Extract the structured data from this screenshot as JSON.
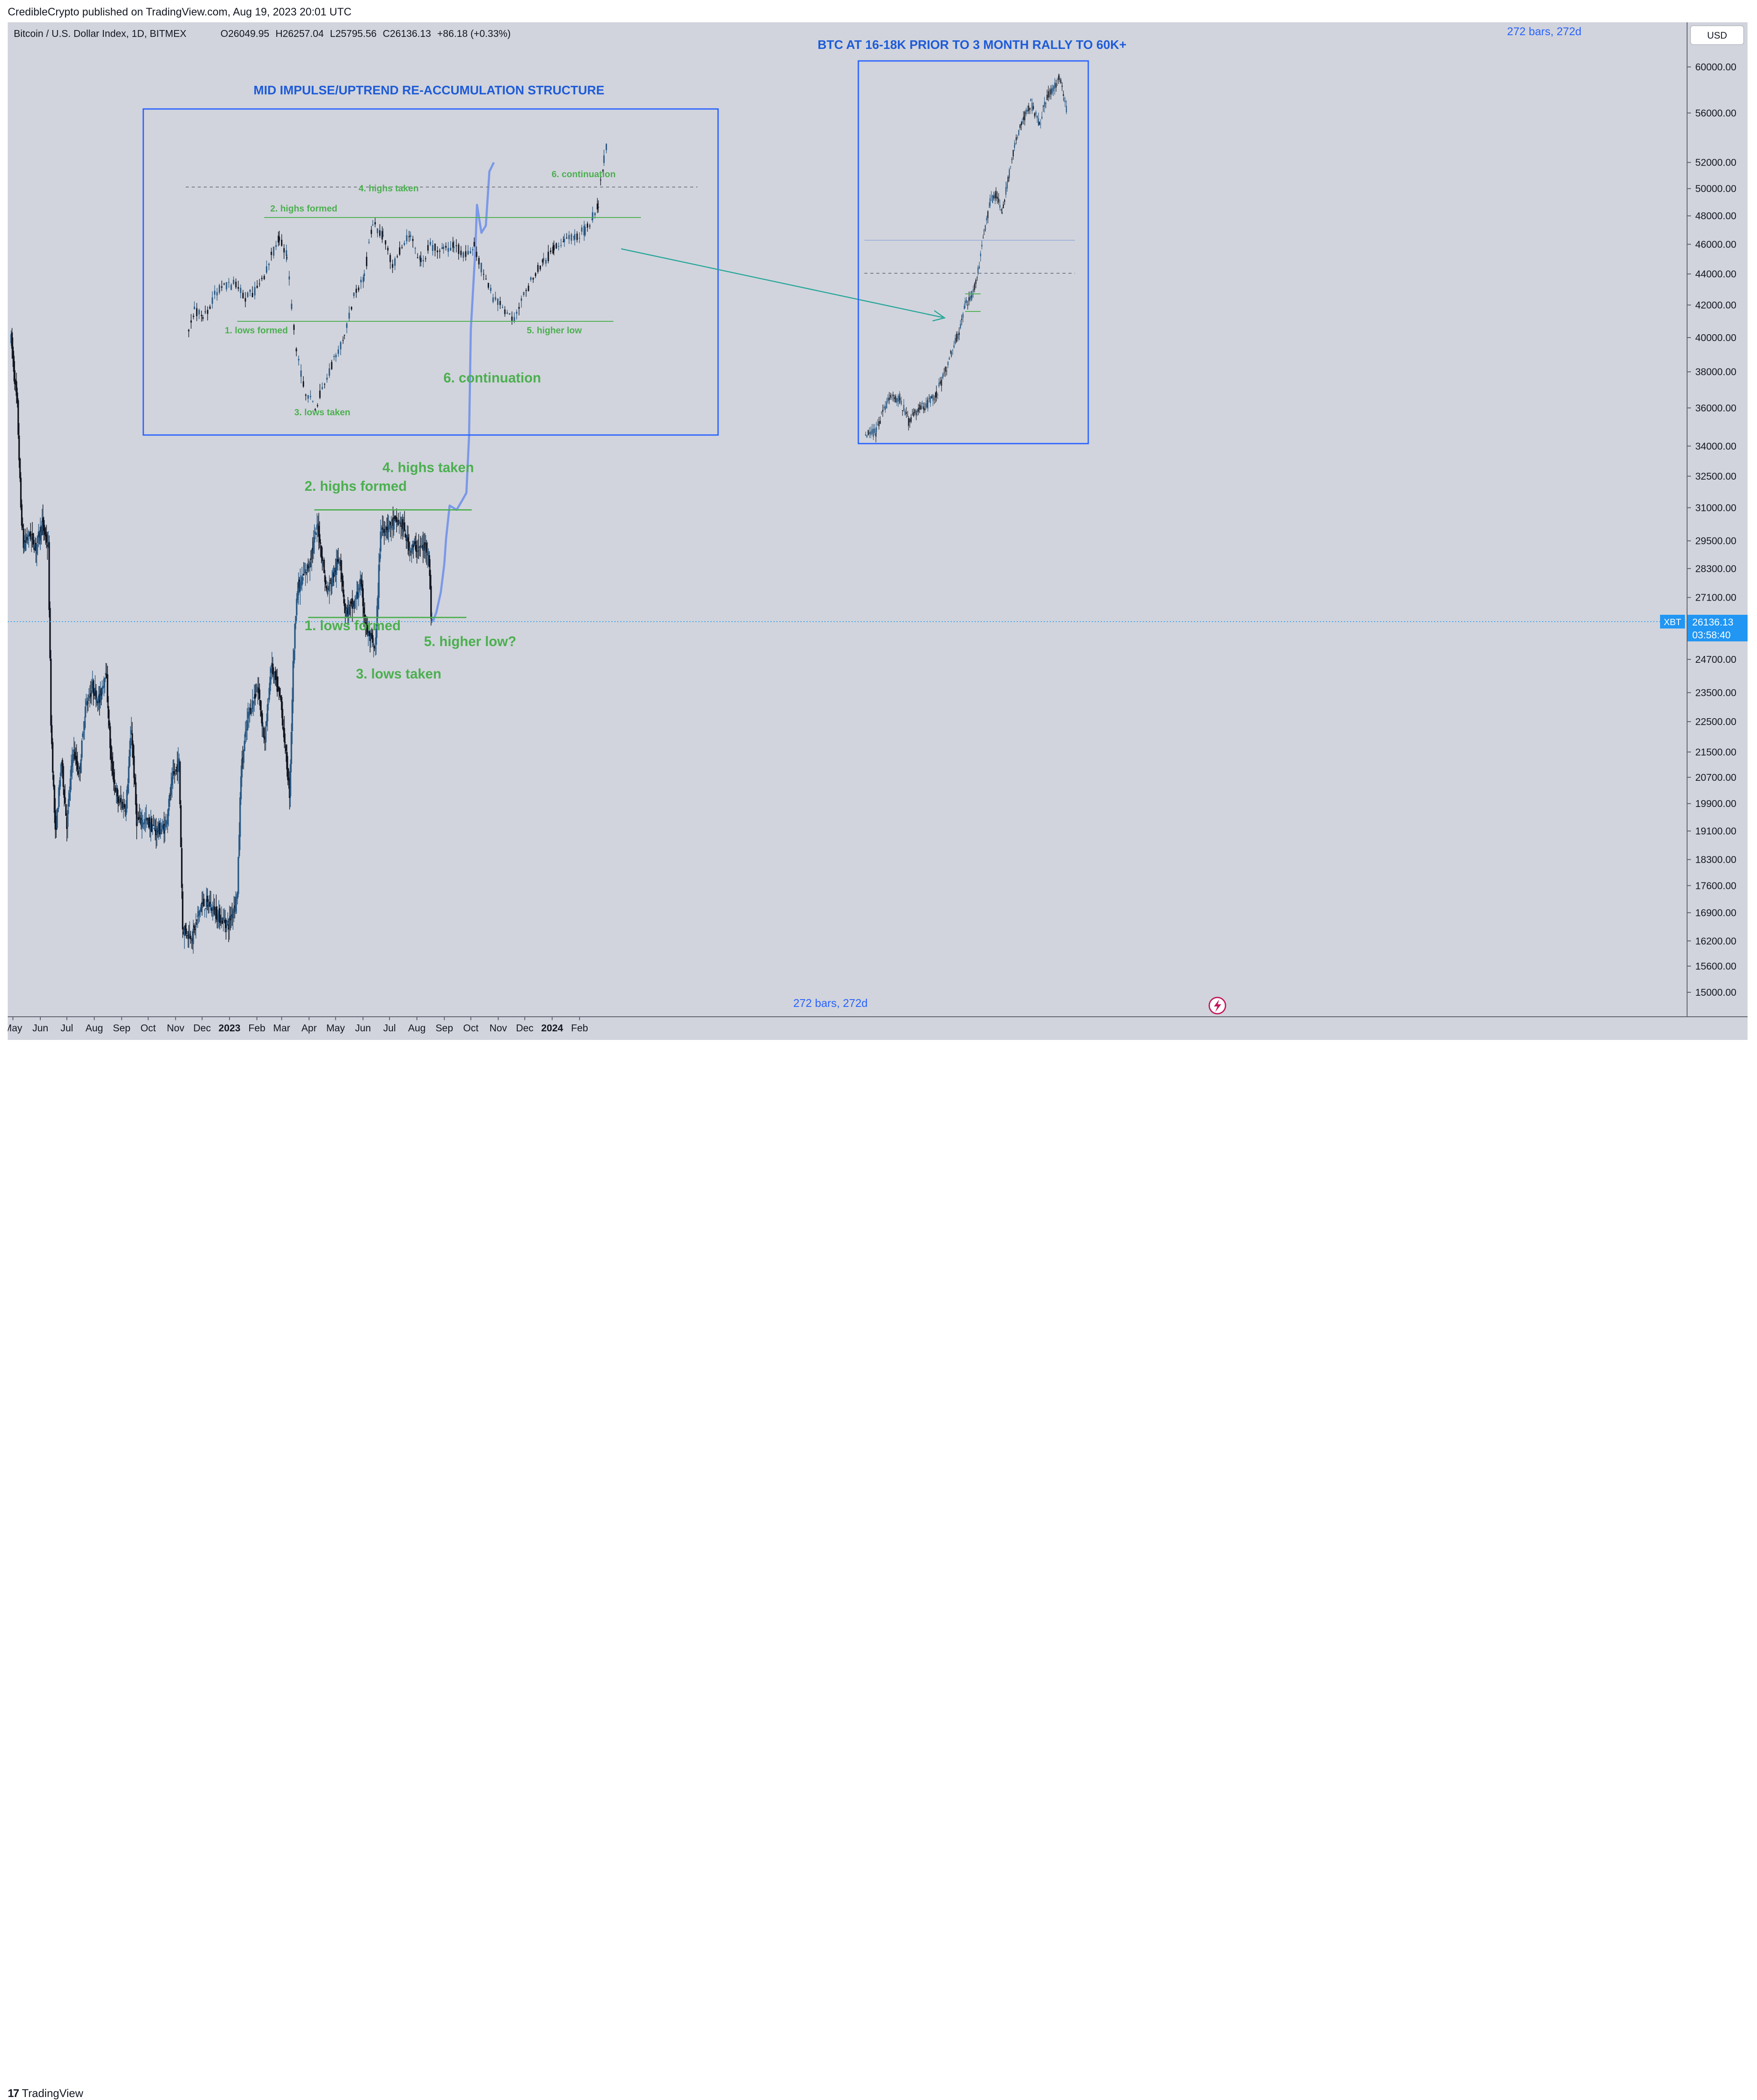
{
  "publisher_line": "CredibleCrypto published on TradingView.com, Aug 19, 2023 20:01 UTC",
  "footer": {
    "logo_mark": "17",
    "logo_text": "TradingView"
  },
  "legend": {
    "symbol": "Bitcoin / U.S. Dollar Index, 1D, BITMEX",
    "open_label": "O",
    "open": "26049.95",
    "high_label": "H",
    "high": "26257.04",
    "low_label": "L",
    "low": "25795.56",
    "close_label": "C",
    "close": "26136.13",
    "change": "+86.18 (+0.33%)"
  },
  "currency_button": "USD",
  "bars_label_top": "272 bars, 272d",
  "bars_label_bottom": "272 bars, 272d",
  "price_tag": {
    "symbol": "XBT",
    "price": "26136.13",
    "countdown": "03:58:40"
  },
  "colors": {
    "background": "#d1d4dc",
    "candle_up": "#2b5a86",
    "candle_down": "#131722",
    "annotation_green": "#4caf50",
    "box_blue": "#2962ff",
    "title_blue": "#1e5bd8",
    "projection": "#7b98e8",
    "axis_text": "#131722"
  },
  "chart_data": [
    {
      "type": "candlestick",
      "title": "",
      "scale": "log",
      "ylim": [
        14500,
        62500
      ],
      "y_ticks": [
        "60000.00",
        "56000.00",
        "52000.00",
        "50000.00",
        "48000.00",
        "46000.00",
        "44000.00",
        "42000.00",
        "40000.00",
        "38000.00",
        "36000.00",
        "34000.00",
        "32500.00",
        "31000.00",
        "29500.00",
        "28300.00",
        "27100.00",
        "25900.00",
        "24700.00",
        "23500.00",
        "22500.00",
        "21500.00",
        "20700.00",
        "19900.00",
        "19100.00",
        "18300.00",
        "17600.00",
        "16900.00",
        "16200.00",
        "15600.00",
        "15000.00"
      ],
      "x_ticks": [
        "May",
        "Jun",
        "Jul",
        "Aug",
        "Sep",
        "Oct",
        "Nov",
        "Dec",
        "2023",
        "Feb",
        "Mar",
        "Apr",
        "May",
        "Jun",
        "Jul",
        "Aug",
        "Sep",
        "Oct",
        "Nov",
        "Dec",
        "2024",
        "Feb"
      ],
      "x_bold_ticks": [
        "2023",
        "2024"
      ],
      "price_path": [
        [
          "2022-04-29",
          39900
        ],
        [
          "2022-05-06",
          36000
        ],
        [
          "2022-05-10",
          31000
        ],
        [
          "2022-05-13",
          29300
        ],
        [
          "2022-05-20",
          29800
        ],
        [
          "2022-05-27",
          29200
        ],
        [
          "2022-06-03",
          30300
        ],
        [
          "2022-06-10",
          29200
        ],
        [
          "2022-06-13",
          22500
        ],
        [
          "2022-06-18",
          19000
        ],
        [
          "2022-06-25",
          21200
        ],
        [
          "2022-07-01",
          19300
        ],
        [
          "2022-07-08",
          21600
        ],
        [
          "2022-07-15",
          20800
        ],
        [
          "2022-07-22",
          23000
        ],
        [
          "2022-07-30",
          23700
        ],
        [
          "2022-08-07",
          23200
        ],
        [
          "2022-08-14",
          24400
        ],
        [
          "2022-08-20",
          21200
        ],
        [
          "2022-08-27",
          20000
        ],
        [
          "2022-09-06",
          19800
        ],
        [
          "2022-09-12",
          22300
        ],
        [
          "2022-09-18",
          19400
        ],
        [
          "2022-09-28",
          19400
        ],
        [
          "2022-10-10",
          19100
        ],
        [
          "2022-10-20",
          19200
        ],
        [
          "2022-10-29",
          20700
        ],
        [
          "2022-11-05",
          21200
        ],
        [
          "2022-11-09",
          16500
        ],
        [
          "2022-11-20",
          16300
        ],
        [
          "2022-11-30",
          17100
        ],
        [
          "2022-12-10",
          17100
        ],
        [
          "2022-12-20",
          16800
        ],
        [
          "2022-12-31",
          16600
        ],
        [
          "2023-01-10",
          17400
        ],
        [
          "2023-01-14",
          20900
        ],
        [
          "2023-01-22",
          22700
        ],
        [
          "2023-02-02",
          23700
        ],
        [
          "2023-02-10",
          21800
        ],
        [
          "2023-02-17",
          24500
        ],
        [
          "2023-02-28",
          23200
        ],
        [
          "2023-03-10",
          20200
        ],
        [
          "2023-03-14",
          24500
        ],
        [
          "2023-03-18",
          27300
        ],
        [
          "2023-03-31",
          28400
        ],
        [
          "2023-04-11",
          30200
        ],
        [
          "2023-04-21",
          27300
        ],
        [
          "2023-05-06",
          28800
        ],
        [
          "2023-05-12",
          26500
        ],
        [
          "2023-05-22",
          26800
        ],
        [
          "2023-05-29",
          27700
        ],
        [
          "2023-06-05",
          25800
        ],
        [
          "2023-06-15",
          25000
        ],
        [
          "2023-06-21",
          30000
        ],
        [
          "2023-07-06",
          30300
        ],
        [
          "2023-07-14",
          30300
        ],
        [
          "2023-07-24",
          29200
        ],
        [
          "2023-08-14",
          29200
        ],
        [
          "2023-08-17",
          26400
        ],
        [
          "2023-08-19",
          26136
        ]
      ],
      "projection_path": [
        [
          "2023-08-19",
          26136
        ],
        [
          "2023-08-23",
          26500
        ],
        [
          "2023-08-28",
          27300
        ],
        [
          "2023-09-01",
          28500
        ],
        [
          "2023-09-03",
          29600
        ],
        [
          "2023-09-07",
          31100
        ],
        [
          "2023-09-15",
          30900
        ],
        [
          "2023-09-22",
          31400
        ],
        [
          "2023-09-26",
          31700
        ],
        [
          "2023-09-29",
          34500
        ],
        [
          "2023-10-01",
          40500
        ],
        [
          "2023-10-06",
          45500
        ],
        [
          "2023-10-08",
          48800
        ],
        [
          "2023-10-13",
          46800
        ],
        [
          "2023-10-18",
          47300
        ],
        [
          "2023-10-22",
          51300
        ],
        [
          "2023-10-27",
          52000
        ]
      ],
      "levels": [
        {
          "name": "highs-line",
          "value": 30900,
          "from": "2023-04-07",
          "to": "2023-10-02"
        },
        {
          "name": "lows-line",
          "value": 26300,
          "from": "2023-03-31",
          "to": "2023-09-26"
        }
      ],
      "current_price_line": 26136.13,
      "annotations": [
        {
          "text": "1. lows formed",
          "date": "2023-03-27",
          "value": 25800
        },
        {
          "text": "2. highs formed",
          "date": "2023-03-27",
          "value": 31800
        },
        {
          "text": "3. lows taken",
          "date": "2023-05-24",
          "value": 24000
        },
        {
          "text": "4. highs taken",
          "date": "2023-06-23",
          "value": 32700
        },
        {
          "text": "5. higher low?",
          "date": "2023-08-09",
          "value": 25200
        },
        {
          "text": "6. continuation",
          "date": "2023-08-31",
          "value": 37400
        }
      ]
    },
    {
      "type": "candlestick",
      "title": "MID IMPULSE/UPTREND RE-ACCUMULATION STRUCTURE",
      "annotations": [
        "1. lows formed",
        "2. highs formed",
        "3. lows taken",
        "4. highs taken",
        "5. higher low",
        "6. continuation"
      ]
    },
    {
      "type": "candlestick",
      "title": "BTC AT 16-18K PRIOR TO 3 MONTH RALLY TO 60K+"
    }
  ]
}
